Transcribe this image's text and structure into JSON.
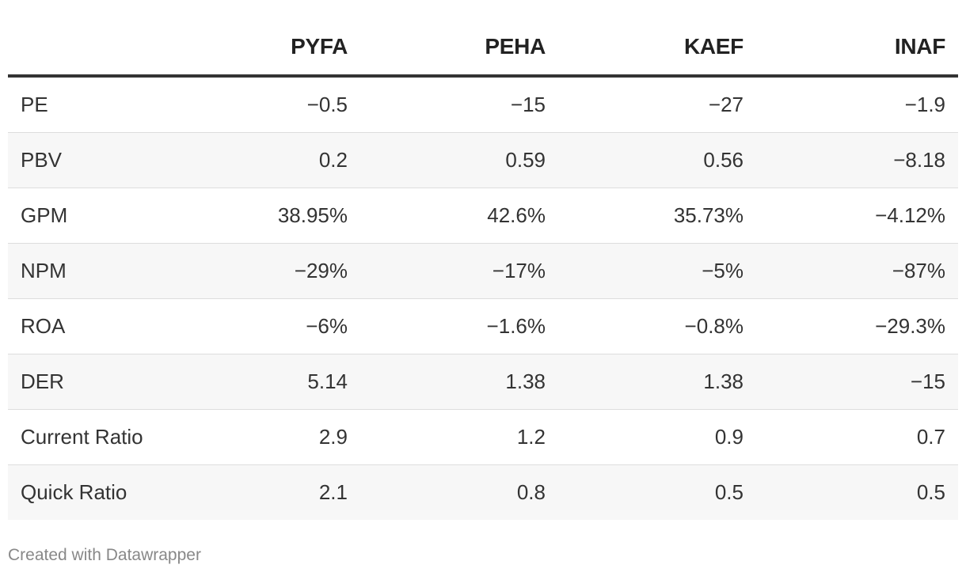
{
  "chart_data": {
    "type": "table",
    "columns": [
      "",
      "PYFA",
      "PEHA",
      "KAEF",
      "INAF"
    ],
    "rows": [
      {
        "label": "PE",
        "values": [
          "−0.5",
          "−15",
          "−27",
          "−1.9"
        ]
      },
      {
        "label": "PBV",
        "values": [
          "0.2",
          "0.59",
          "0.56",
          "−8.18"
        ]
      },
      {
        "label": "GPM",
        "values": [
          "38.95%",
          "42.6%",
          "35.73%",
          "−4.12%"
        ]
      },
      {
        "label": "NPM",
        "values": [
          "−29%",
          "−17%",
          "−5%",
          "−87%"
        ]
      },
      {
        "label": "ROA",
        "values": [
          "−6%",
          "−1.6%",
          "−0.8%",
          "−29.3%"
        ]
      },
      {
        "label": "DER",
        "values": [
          "5.14",
          "1.38",
          "1.38",
          "−15"
        ]
      },
      {
        "label": "Current Ratio",
        "values": [
          "2.9",
          "1.2",
          "0.9",
          "0.7"
        ]
      },
      {
        "label": "Quick Ratio",
        "values": [
          "2.1",
          "0.8",
          "0.5",
          "0.5"
        ]
      }
    ]
  },
  "footer": {
    "credit": "Created with Datawrapper"
  },
  "colors": {
    "text": "#333333",
    "header_rule": "#333333",
    "row_alt": "#f7f7f7",
    "row_rule": "#dddddd",
    "footer_text": "#888888"
  }
}
